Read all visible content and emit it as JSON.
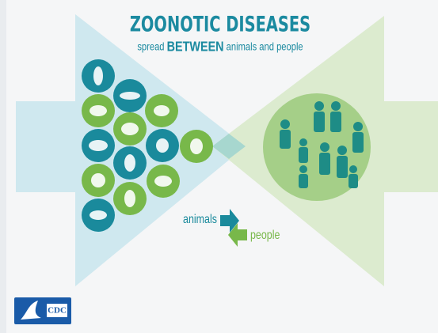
{
  "header": {
    "title": "ZOONOTIC DISEASES",
    "subtitle": {
      "lead": "spread",
      "emphasis": "BETWEEN",
      "tail": "animals and people"
    }
  },
  "flow": {
    "from": "animals",
    "to": "people"
  },
  "logo": {
    "text": "CDC"
  }
}
